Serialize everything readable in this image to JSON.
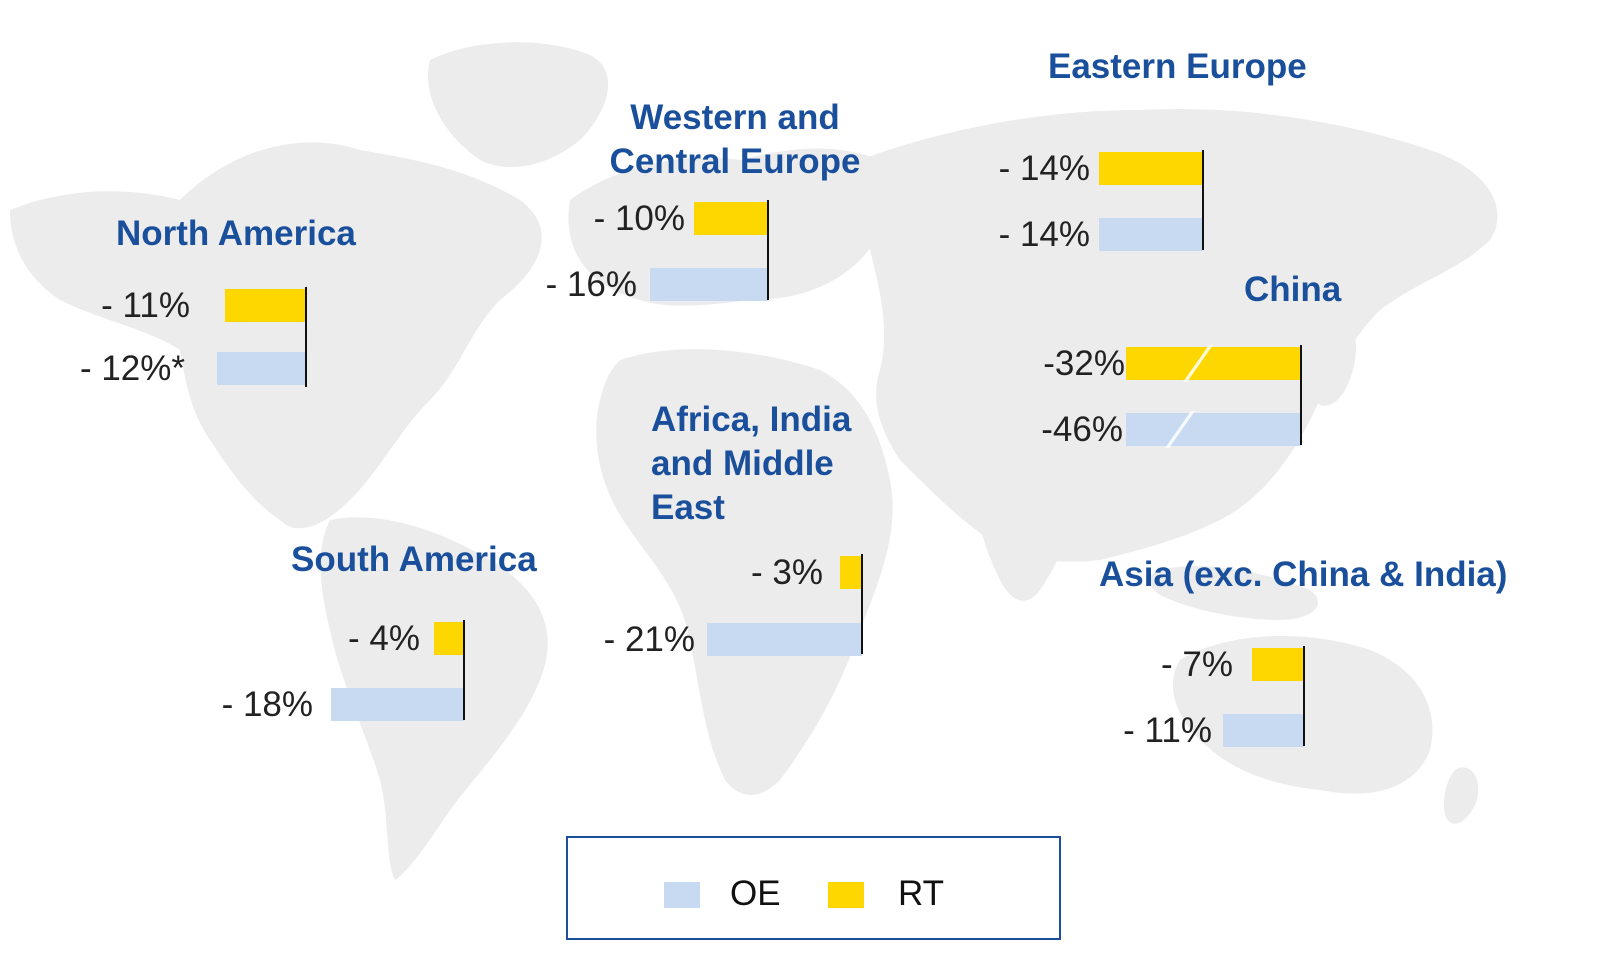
{
  "colors": {
    "oe": "#c8daf1",
    "rt": "#ffd700",
    "title": "#1a4f9c",
    "land": "#ececec"
  },
  "legend": {
    "items": [
      {
        "label": "OE",
        "color": "#c8daf1"
      },
      {
        "label": "RT",
        "color": "#ffd700"
      }
    ]
  },
  "regions": [
    {
      "id": "north-america",
      "title_lines": [
        "North America"
      ],
      "rt": {
        "value": -11,
        "label": "- 11%"
      },
      "oe": {
        "value": -12,
        "label": "- 12%*"
      },
      "broken": false
    },
    {
      "id": "western-central-europe",
      "title_lines": [
        "Western and",
        "Central Europe"
      ],
      "rt": {
        "value": -10,
        "label": "- 10%"
      },
      "oe": {
        "value": -16,
        "label": "- 16%"
      },
      "broken": false
    },
    {
      "id": "eastern-europe",
      "title_lines": [
        "Eastern Europe"
      ],
      "rt": {
        "value": -14,
        "label": "- 14%"
      },
      "oe": {
        "value": -14,
        "label": "- 14%"
      },
      "broken": false
    },
    {
      "id": "china",
      "title_lines": [
        "China"
      ],
      "rt": {
        "value": -32,
        "label": "-32%"
      },
      "oe": {
        "value": -46,
        "label": "-46%"
      },
      "broken": true
    },
    {
      "id": "africa-india-middle-east",
      "title_lines": [
        "Africa, India",
        "and Middle",
        "East"
      ],
      "rt": {
        "value": -3,
        "label": "- 3%"
      },
      "oe": {
        "value": -21,
        "label": "- 21%"
      },
      "broken": false
    },
    {
      "id": "south-america",
      "title_lines": [
        "South America"
      ],
      "rt": {
        "value": -4,
        "label": "- 4%"
      },
      "oe": {
        "value": -18,
        "label": "- 18%"
      },
      "broken": false
    },
    {
      "id": "asia-exc-china-india",
      "title_lines": [
        "Asia (exc. China & India)"
      ],
      "rt": {
        "value": -7,
        "label": "- 7%"
      },
      "oe": {
        "value": -11,
        "label": "- 11%"
      },
      "broken": false
    }
  ]
}
